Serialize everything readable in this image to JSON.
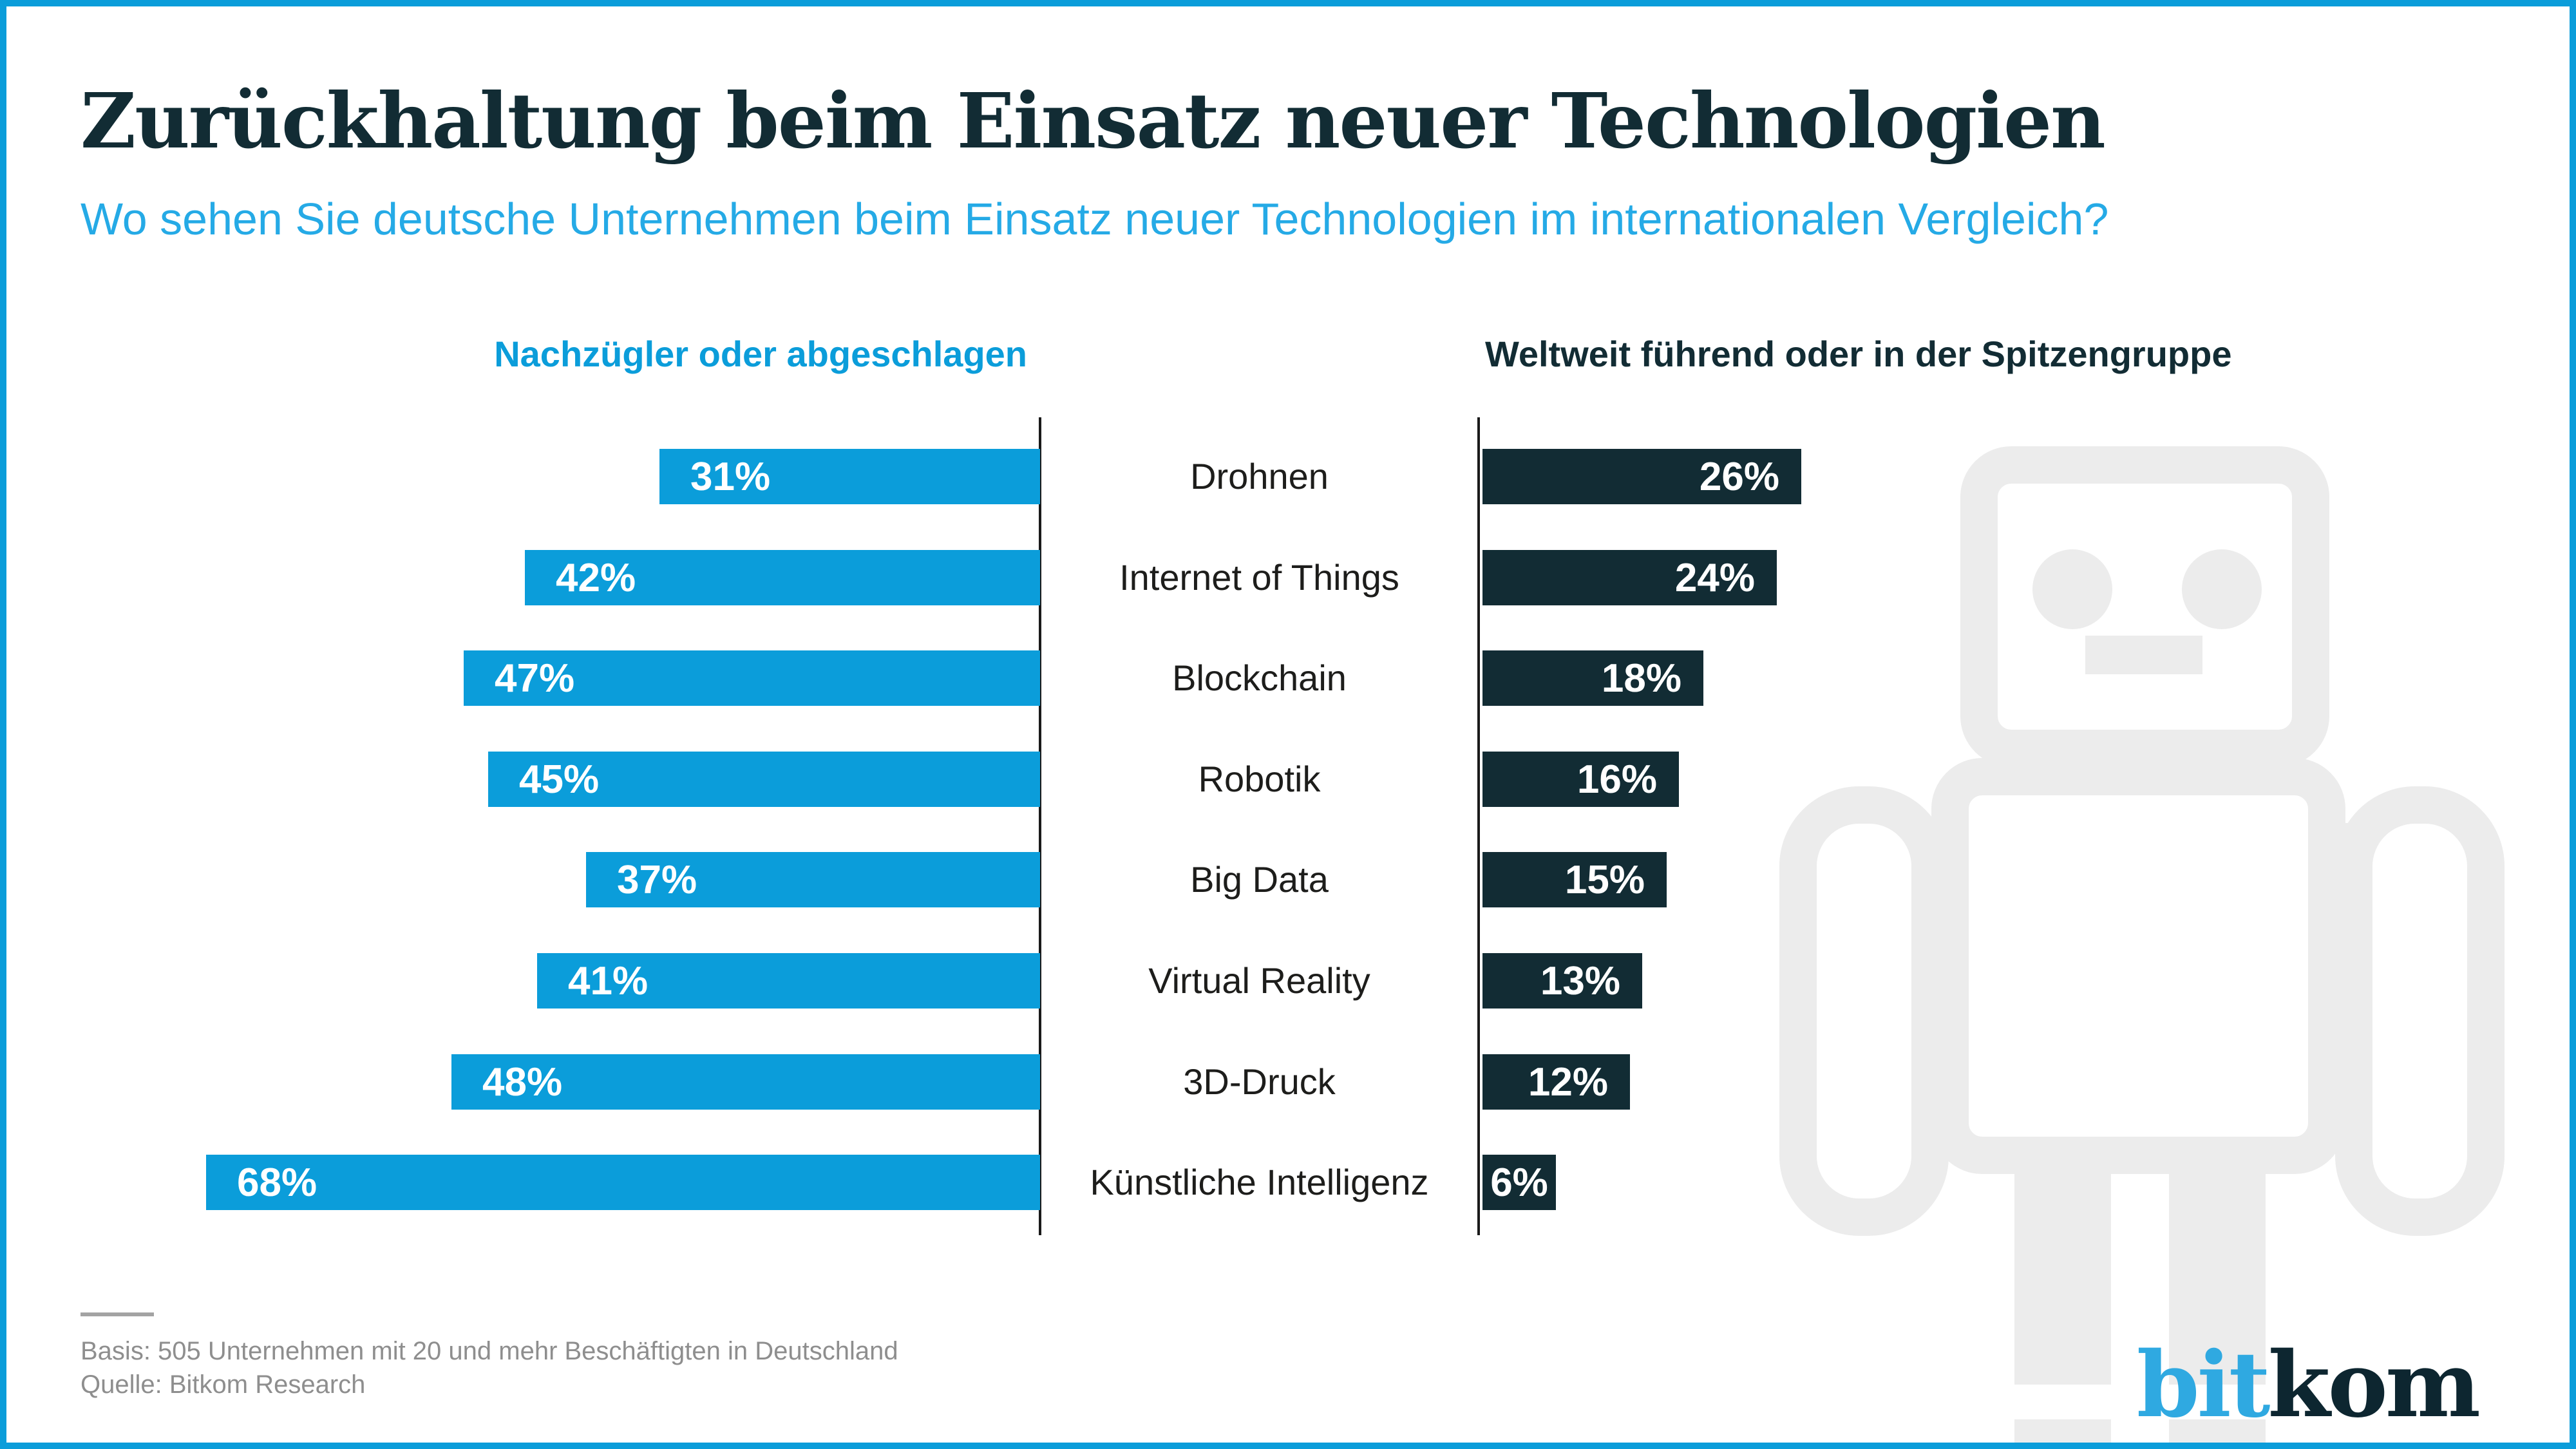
{
  "header": {
    "title": "Zurückhaltung beim Einsatz neuer Technologien",
    "subtitle": "Wo sehen Sie deutsche Unternehmen beim Einsatz neuer Technologien im internationalen Vergleich?"
  },
  "chart_data": {
    "type": "bar",
    "layout": "diverging-horizontal",
    "unit": "%",
    "categories": [
      "Drohnen",
      "Internet of Things",
      "Blockchain",
      "Robotik",
      "Big Data",
      "Virtual Reality",
      "3D-Druck",
      "Künstliche Intelligenz"
    ],
    "series": [
      {
        "name": "Nachzügler oder abgeschlagen",
        "side": "left",
        "color": "#0b9dda",
        "values": [
          31,
          42,
          47,
          45,
          37,
          41,
          48,
          68
        ]
      },
      {
        "name": "Weltweit führend oder in der Spitzengruppe",
        "side": "right",
        "color": "#122c34",
        "values": [
          26,
          24,
          18,
          16,
          15,
          13,
          12,
          6
        ]
      }
    ],
    "value_label_format": "{value}%",
    "legend_position": "column-headers",
    "grid": false,
    "xlim_percent": [
      0,
      70
    ]
  },
  "footer": {
    "basis": "Basis: 505 Unternehmen mit 20 und mehr Beschäftigten in Deutschland",
    "quelle": "Quelle: Bitkom Research"
  },
  "logo": {
    "bit": "bit",
    "kom": "kom"
  },
  "colors": {
    "accent_blue": "#0b9dda",
    "subtitle_blue": "#25aae6",
    "dark_teal": "#122c34",
    "logo_bit_blue": "#2fa9e1",
    "logo_kom_dark": "#0d2630",
    "axis_black": "#1a1a1a",
    "bar_label_white": "#ffffff",
    "footer_gray": "#8e8e8e",
    "robot_gray": "#ececec"
  }
}
